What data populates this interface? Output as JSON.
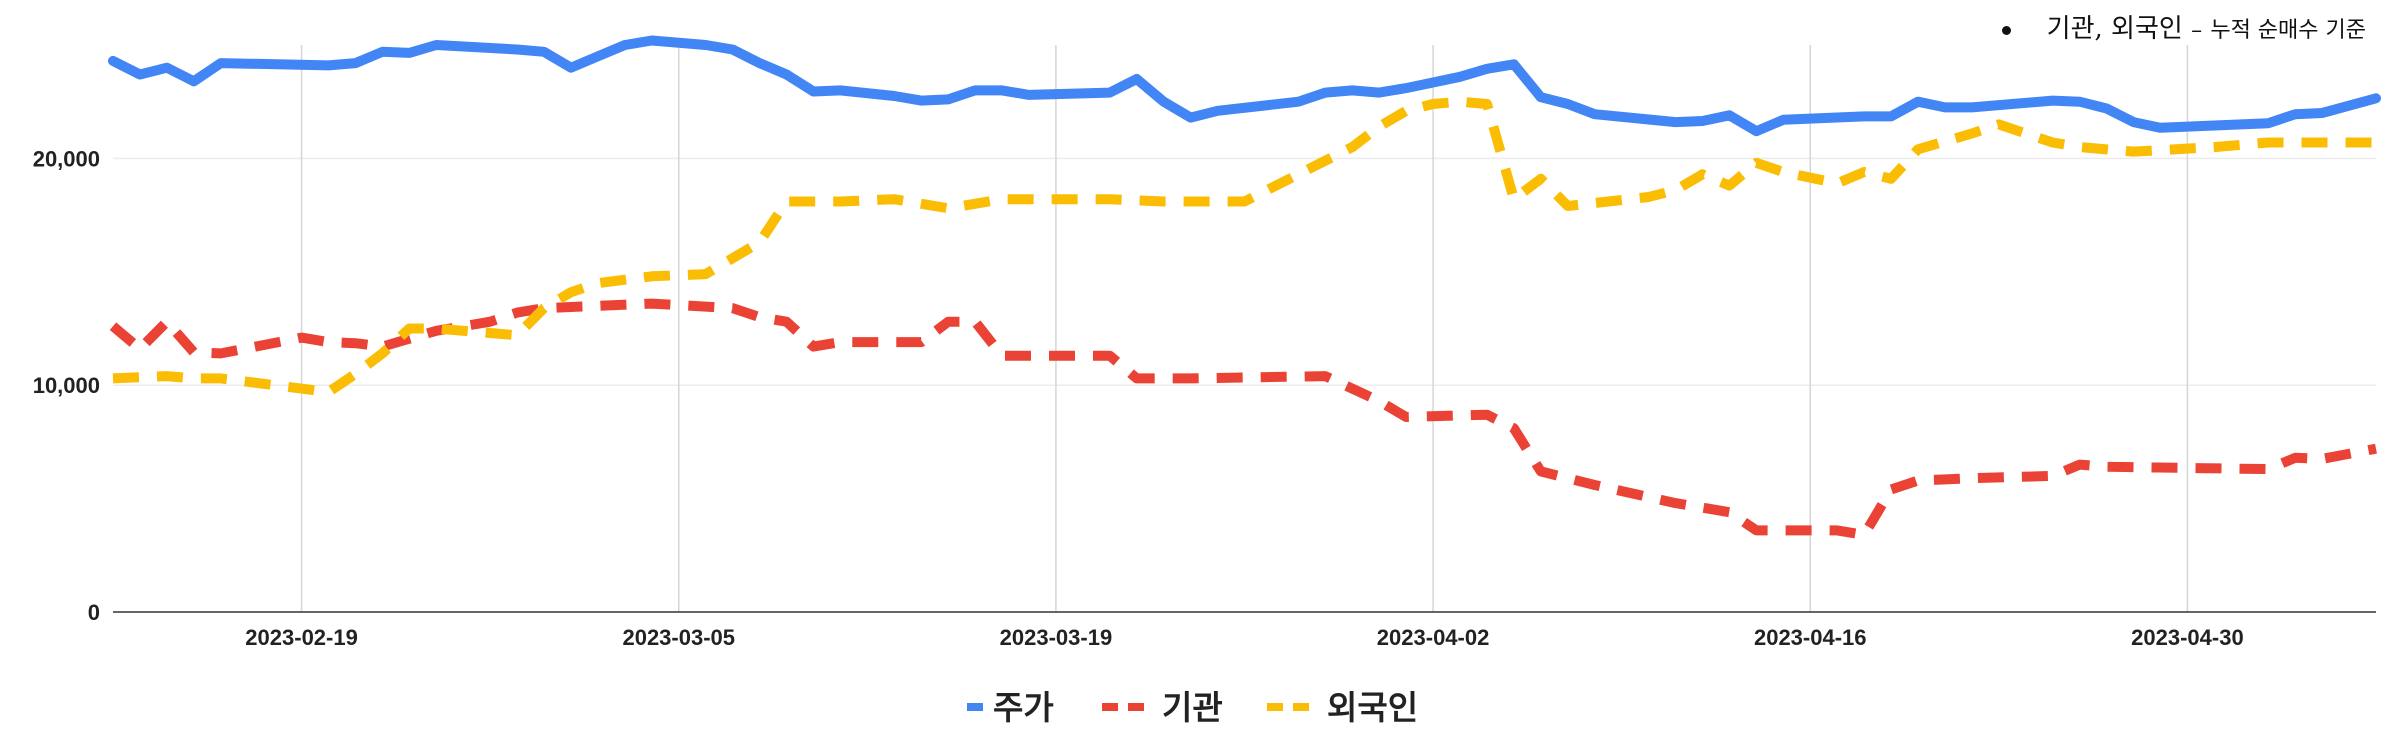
{
  "note": {
    "main": "기관, 외국인",
    "dash": "–",
    "sub": "누적 순매수 기준"
  },
  "chart_data": {
    "type": "line",
    "title": "",
    "xlabel": "",
    "ylabel": "",
    "ylim": [
      0,
      25000
    ],
    "yticks": [
      0,
      10000,
      20000
    ],
    "ytick_labels": [
      "0",
      "10,000",
      "20,000"
    ],
    "x_range": [
      "2023-02-12",
      "2023-05-07"
    ],
    "xticks": [
      "2023-02-19",
      "2023-03-05",
      "2023-03-19",
      "2023-04-02",
      "2023-04-16",
      "2023-04-30"
    ],
    "grid": "vertical + horizontal",
    "legend_position": "bottom",
    "series": [
      {
        "name": "주가",
        "color": "#4285F4",
        "dash": "solid",
        "points": [
          [
            "2023-02-12",
            24300
          ],
          [
            "2023-02-13",
            23700
          ],
          [
            "2023-02-14",
            24000
          ],
          [
            "2023-02-15",
            23400
          ],
          [
            "2023-02-16",
            24200
          ],
          [
            "2023-02-20",
            24100
          ],
          [
            "2023-02-21",
            24200
          ],
          [
            "2023-02-22",
            24700
          ],
          [
            "2023-02-23",
            24650
          ],
          [
            "2023-02-24",
            25000
          ],
          [
            "2023-02-27",
            24800
          ],
          [
            "2023-02-28",
            24700
          ],
          [
            "2023-03-01",
            24000
          ],
          [
            "2023-03-02",
            24500
          ],
          [
            "2023-03-03",
            25000
          ],
          [
            "2023-03-04",
            25200
          ],
          [
            "2023-03-06",
            25000
          ],
          [
            "2023-03-07",
            24800
          ],
          [
            "2023-03-08",
            24200
          ],
          [
            "2023-03-09",
            23700
          ],
          [
            "2023-03-10",
            22950
          ],
          [
            "2023-03-11",
            23000
          ],
          [
            "2023-03-13",
            22750
          ],
          [
            "2023-03-14",
            22550
          ],
          [
            "2023-03-15",
            22600
          ],
          [
            "2023-03-16",
            23000
          ],
          [
            "2023-03-17",
            23000
          ],
          [
            "2023-03-18",
            22800
          ],
          [
            "2023-03-21",
            22900
          ],
          [
            "2023-03-22",
            23500
          ],
          [
            "2023-03-23",
            22500
          ],
          [
            "2023-03-24",
            21800
          ],
          [
            "2023-03-25",
            22100
          ],
          [
            "2023-03-28",
            22500
          ],
          [
            "2023-03-29",
            22900
          ],
          [
            "2023-03-30",
            23000
          ],
          [
            "2023-03-31",
            22900
          ],
          [
            "2023-04-01",
            23100
          ],
          [
            "2023-04-03",
            23600
          ],
          [
            "2023-04-04",
            23950
          ],
          [
            "2023-04-05",
            24150
          ],
          [
            "2023-04-06",
            22700
          ],
          [
            "2023-04-07",
            22400
          ],
          [
            "2023-04-08",
            21950
          ],
          [
            "2023-04-11",
            21600
          ],
          [
            "2023-04-12",
            21650
          ],
          [
            "2023-04-13",
            21900
          ],
          [
            "2023-04-14",
            21200
          ],
          [
            "2023-04-15",
            21700
          ],
          [
            "2023-04-18",
            21850
          ],
          [
            "2023-04-19",
            21850
          ],
          [
            "2023-04-20",
            22500
          ],
          [
            "2023-04-21",
            22250
          ],
          [
            "2023-04-22",
            22250
          ],
          [
            "2023-04-25",
            22550
          ],
          [
            "2023-04-26",
            22500
          ],
          [
            "2023-04-27",
            22200
          ],
          [
            "2023-04-28",
            21600
          ],
          [
            "2023-04-29",
            21350
          ],
          [
            "2023-05-03",
            21550
          ],
          [
            "2023-05-04",
            21950
          ],
          [
            "2023-05-05",
            22000
          ],
          [
            "2023-05-07",
            22650
          ]
        ]
      },
      {
        "name": "기관",
        "color": "#EA4335",
        "dash": "dashed",
        "points": [
          [
            "2023-02-12",
            12600
          ],
          [
            "2023-02-13",
            11600
          ],
          [
            "2023-02-14",
            12800
          ],
          [
            "2023-02-15",
            11450
          ],
          [
            "2023-02-16",
            11400
          ],
          [
            "2023-02-19",
            12100
          ],
          [
            "2023-02-20",
            11900
          ],
          [
            "2023-02-21",
            11850
          ],
          [
            "2023-02-22",
            11700
          ],
          [
            "2023-02-24",
            12400
          ],
          [
            "2023-02-26",
            12800
          ],
          [
            "2023-02-27",
            13200
          ],
          [
            "2023-02-28",
            13400
          ],
          [
            "2023-03-02",
            13500
          ],
          [
            "2023-03-04",
            13600
          ],
          [
            "2023-03-07",
            13400
          ],
          [
            "2023-03-08",
            13000
          ],
          [
            "2023-03-09",
            12800
          ],
          [
            "2023-03-10",
            11700
          ],
          [
            "2023-03-11",
            11900
          ],
          [
            "2023-03-14",
            11900
          ],
          [
            "2023-03-15",
            12800
          ],
          [
            "2023-03-16",
            12800
          ],
          [
            "2023-03-17",
            11300
          ],
          [
            "2023-03-21",
            11300
          ],
          [
            "2023-03-22",
            10300
          ],
          [
            "2023-03-24",
            10300
          ],
          [
            "2023-03-29",
            10400
          ],
          [
            "2023-03-31",
            9300
          ],
          [
            "2023-04-01",
            8600
          ],
          [
            "2023-04-04",
            8700
          ],
          [
            "2023-04-05",
            8100
          ],
          [
            "2023-04-06",
            6200
          ],
          [
            "2023-04-08",
            5600
          ],
          [
            "2023-04-11",
            4800
          ],
          [
            "2023-04-13",
            4400
          ],
          [
            "2023-04-14",
            3600
          ],
          [
            "2023-04-17",
            3600
          ],
          [
            "2023-04-18",
            3400
          ],
          [
            "2023-04-19",
            5400
          ],
          [
            "2023-04-20",
            5800
          ],
          [
            "2023-04-22",
            5900
          ],
          [
            "2023-04-25",
            6000
          ],
          [
            "2023-04-26",
            6500
          ],
          [
            "2023-04-27",
            6400
          ],
          [
            "2023-05-03",
            6300
          ],
          [
            "2023-05-04",
            6800
          ],
          [
            "2023-05-05",
            6750
          ],
          [
            "2023-05-07",
            7200
          ]
        ]
      },
      {
        "name": "외국인",
        "color": "#FBBC04",
        "dash": "dashed",
        "points": [
          [
            "2023-02-12",
            10300
          ],
          [
            "2023-02-14",
            10400
          ],
          [
            "2023-02-15",
            10300
          ],
          [
            "2023-02-16",
            10300
          ],
          [
            "2023-02-18",
            10000
          ],
          [
            "2023-02-20",
            9700
          ],
          [
            "2023-02-21",
            10500
          ],
          [
            "2023-02-22",
            11400
          ],
          [
            "2023-02-23",
            12500
          ],
          [
            "2023-02-24",
            12500
          ],
          [
            "2023-02-25",
            12400
          ],
          [
            "2023-02-26",
            12300
          ],
          [
            "2023-02-27",
            12200
          ],
          [
            "2023-02-28",
            13400
          ],
          [
            "2023-03-01",
            14100
          ],
          [
            "2023-03-02",
            14500
          ],
          [
            "2023-03-04",
            14800
          ],
          [
            "2023-03-06",
            14900
          ],
          [
            "2023-03-08",
            16300
          ],
          [
            "2023-03-09",
            18100
          ],
          [
            "2023-03-11",
            18100
          ],
          [
            "2023-03-13",
            18200
          ],
          [
            "2023-03-15",
            17800
          ],
          [
            "2023-03-17",
            18200
          ],
          [
            "2023-03-21",
            18200
          ],
          [
            "2023-03-23",
            18100
          ],
          [
            "2023-03-26",
            18100
          ],
          [
            "2023-03-28",
            19300
          ],
          [
            "2023-03-30",
            20500
          ],
          [
            "2023-03-31",
            21400
          ],
          [
            "2023-04-01",
            22100
          ],
          [
            "2023-04-02",
            22400
          ],
          [
            "2023-04-03",
            22500
          ],
          [
            "2023-04-04",
            22400
          ],
          [
            "2023-04-05",
            18200
          ],
          [
            "2023-04-06",
            19100
          ],
          [
            "2023-04-07",
            17900
          ],
          [
            "2023-04-10",
            18300
          ],
          [
            "2023-04-11",
            18600
          ],
          [
            "2023-04-12",
            19300
          ],
          [
            "2023-04-13",
            18800
          ],
          [
            "2023-04-14",
            19800
          ],
          [
            "2023-04-15",
            19400
          ],
          [
            "2023-04-17",
            18900
          ],
          [
            "2023-04-18",
            19400
          ],
          [
            "2023-04-19",
            19100
          ],
          [
            "2023-04-20",
            20400
          ],
          [
            "2023-04-22",
            21100
          ],
          [
            "2023-04-23",
            21500
          ],
          [
            "2023-04-25",
            20700
          ],
          [
            "2023-04-26",
            20500
          ],
          [
            "2023-04-28",
            20300
          ],
          [
            "2023-05-01",
            20500
          ],
          [
            "2023-05-03",
            20700
          ],
          [
            "2023-05-05",
            20700
          ],
          [
            "2023-05-07",
            20700
          ]
        ]
      }
    ]
  }
}
